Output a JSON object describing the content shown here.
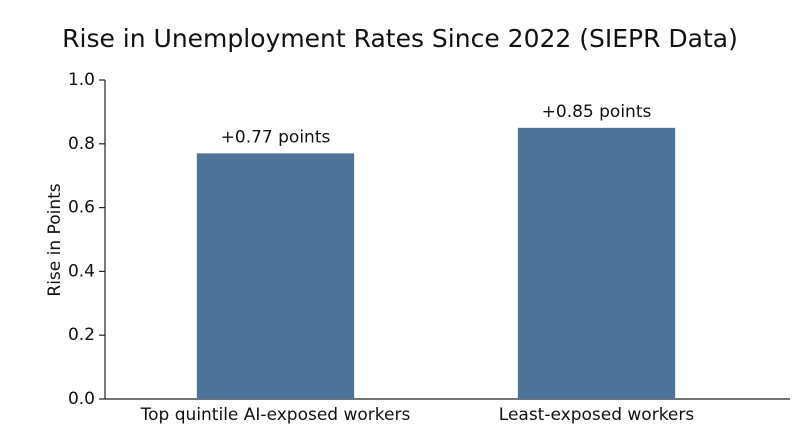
{
  "chart_data": {
    "type": "bar",
    "title": "Rise in Unemployment Rates Since 2022 (SIEPR Data)",
    "y_label": "Rise in Points",
    "categories": [
      "Top quintile AI-exposed workers",
      "Least-exposed workers"
    ],
    "values": [
      0.77,
      0.85
    ],
    "value_labels": [
      "+0.77 points",
      "+0.85 points"
    ],
    "color": "#4e7399",
    "ylim": [
      0,
      1
    ],
    "yticks": [
      {
        "value": 0,
        "label": "0.0"
      },
      0.2,
      0.4,
      0.6,
      0.8,
      {
        "value": 1,
        "label": "1.0"
      }
    ],
    "grid": false
  }
}
